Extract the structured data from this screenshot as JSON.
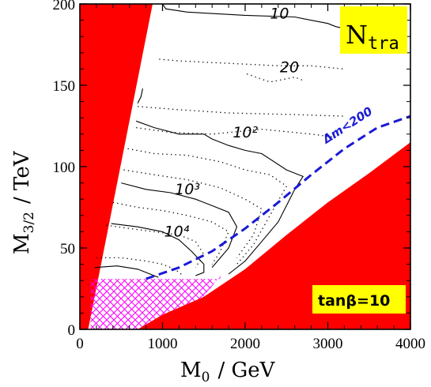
{
  "chart_data": {
    "type": "line",
    "xlabel": "M",
    "xlabel_sub": "0",
    "xlabel_unit": "/ GeV",
    "ylabel": "M",
    "ylabel_sub": "3/2",
    "ylabel_unit": "/ TeV",
    "xlim": [
      0,
      4000
    ],
    "ylim": [
      0,
      200
    ],
    "xticks": [
      0,
      1000,
      2000,
      3000,
      4000
    ],
    "yticks": [
      0,
      50,
      100,
      150,
      200
    ],
    "title_badge": {
      "main": "N",
      "sub": "tra"
    },
    "param_badge": "tanβ=10",
    "colors": {
      "excluded": "#ff0000",
      "hatch": "#ff00ff",
      "dashed": "#1a1ad6",
      "badge": "#ffff00"
    },
    "regions": [
      {
        "name": "excluded-left",
        "points": [
          [
            0,
            0
          ],
          [
            0,
            200
          ],
          [
            880,
            200
          ],
          [
            100,
            0
          ]
        ]
      },
      {
        "name": "excluded-right",
        "points": [
          [
            700,
            0
          ],
          [
            1000,
            9
          ],
          [
            1500,
            20
          ],
          [
            2000,
            37
          ],
          [
            2500,
            58
          ],
          [
            3000,
            78
          ],
          [
            3500,
            96
          ],
          [
            4000,
            115
          ],
          [
            4000,
            0
          ]
        ]
      }
    ],
    "hatched_region": {
      "points": [
        [
          130,
          0
        ],
        [
          130,
          31
        ],
        [
          1700,
          31
        ],
        [
          1700,
          33
        ],
        [
          1500,
          20
        ],
        [
          1000,
          9
        ],
        [
          700,
          0
        ]
      ]
    },
    "dashed_boundary": {
      "label": "Δm<200",
      "label_position": [
        2980,
        114
      ],
      "label_angle": -33,
      "points": [
        [
          800,
          31
        ],
        [
          1200,
          38
        ],
        [
          1600,
          48
        ],
        [
          2000,
          62
        ],
        [
          2400,
          78
        ],
        [
          2800,
          95
        ],
        [
          3200,
          111
        ],
        [
          3600,
          124
        ],
        [
          4000,
          131
        ]
      ]
    },
    "contours": [
      {
        "label": "10",
        "style": "solid",
        "label_position": [
          2300,
          191
        ],
        "points": [
          [
            1000,
            200
          ],
          [
            1040,
            197
          ],
          [
            1300,
            195
          ],
          [
            2000,
            193
          ],
          [
            2600,
            192
          ],
          [
            3000,
            188
          ],
          [
            3100,
            186
          ],
          [
            3200,
            185
          ],
          [
            3300,
            186
          ]
        ]
      },
      {
        "label": "20",
        "style": "dotted",
        "label_position": [
          2420,
          158
        ],
        "points": [
          [
            960,
            166
          ],
          [
            1200,
            165
          ],
          [
            1600,
            164
          ],
          [
            2000,
            163
          ],
          [
            2400,
            162
          ],
          [
            2800,
            162
          ],
          [
            3200,
            160
          ]
        ]
      },
      {
        "label": "",
        "style": "solid",
        "points": [
          [
            700,
            139
          ],
          [
            740,
            143
          ],
          [
            760,
            148
          ]
        ]
      },
      {
        "label": "",
        "style": "dotted",
        "points": [
          [
            700,
            137
          ],
          [
            1200,
            135
          ],
          [
            1800,
            133
          ],
          [
            2600,
            132
          ],
          [
            3200,
            131
          ]
        ]
      },
      {
        "label": "",
        "style": "dotted",
        "points": [
          [
            680,
            124
          ],
          [
            1100,
            121
          ],
          [
            1600,
            120
          ],
          [
            2200,
            123
          ],
          [
            2800,
            120
          ],
          [
            3100,
            118
          ]
        ]
      },
      {
        "label": "10²",
        "style": "solid",
        "label_position": [
          1850,
          118
        ],
        "points": [
          [
            680,
            128
          ],
          [
            900,
            124
          ],
          [
            1200,
            120
          ],
          [
            1500,
            120
          ],
          [
            1600,
            117
          ],
          [
            1800,
            113
          ],
          [
            2000,
            110
          ],
          [
            2200,
            108
          ],
          [
            2500,
            98
          ],
          [
            2700,
            94
          ],
          [
            2600,
            86
          ],
          [
            2400,
            66
          ],
          [
            2200,
            54
          ],
          [
            2000,
            42
          ],
          [
            1800,
            34
          ]
        ]
      },
      {
        "label": "",
        "style": "dotted",
        "points": [
          [
            580,
            111
          ],
          [
            900,
            108
          ],
          [
            1300,
            107
          ],
          [
            1700,
            103
          ],
          [
            2000,
            98
          ],
          [
            2300,
            95
          ],
          [
            2500,
            88
          ],
          [
            2300,
            70
          ],
          [
            2100,
            52
          ],
          [
            1900,
            40
          ]
        ]
      },
      {
        "label": "",
        "style": "dotted",
        "points": [
          [
            530,
            98
          ],
          [
            900,
            95
          ],
          [
            1300,
            92
          ],
          [
            1700,
            87
          ],
          [
            2000,
            80
          ],
          [
            2200,
            74
          ],
          [
            2100,
            58
          ],
          [
            1900,
            44
          ]
        ]
      },
      {
        "label": "10³",
        "style": "solid",
        "label_position": [
          1150,
          83
        ],
        "points": [
          [
            500,
            90
          ],
          [
            800,
            86
          ],
          [
            1100,
            84
          ],
          [
            1400,
            80
          ],
          [
            1600,
            76
          ],
          [
            1800,
            72
          ],
          [
            1900,
            63
          ],
          [
            1800,
            50
          ],
          [
            1700,
            44
          ],
          [
            1600,
            38
          ]
        ]
      },
      {
        "label": "",
        "style": "dotted",
        "points": [
          [
            400,
            78
          ],
          [
            700,
            75
          ],
          [
            1000,
            73
          ],
          [
            1300,
            70
          ],
          [
            1600,
            66
          ],
          [
            1800,
            60
          ],
          [
            1700,
            48
          ],
          [
            1600,
            40
          ]
        ]
      },
      {
        "label": "",
        "style": "dotted",
        "points": [
          [
            320,
            64
          ],
          [
            600,
            62
          ],
          [
            900,
            60
          ],
          [
            1200,
            58
          ],
          [
            1400,
            54
          ],
          [
            1500,
            46
          ],
          [
            1400,
            38
          ]
        ]
      },
      {
        "label": "10⁴",
        "style": "solid",
        "label_position": [
          1020,
          57
        ],
        "points": [
          [
            380,
            65
          ],
          [
            700,
            63
          ],
          [
            1000,
            60
          ],
          [
            1200,
            55
          ],
          [
            1350,
            48
          ],
          [
            1500,
            40
          ],
          [
            1500,
            35
          ],
          [
            1400,
            33
          ]
        ]
      },
      {
        "label": "",
        "style": "dotted",
        "points": [
          [
            200,
            44
          ],
          [
            500,
            44
          ],
          [
            800,
            42
          ],
          [
            1000,
            40
          ],
          [
            1150,
            37
          ],
          [
            1250,
            33
          ]
        ]
      },
      {
        "label": "",
        "style": "solid",
        "points": [
          [
            180,
            38
          ],
          [
            450,
            39
          ],
          [
            700,
            37
          ],
          [
            850,
            34
          ],
          [
            950,
            32
          ]
        ]
      },
      {
        "label": "",
        "style": "dotted",
        "points": [
          [
            2020,
            157
          ],
          [
            2300,
            152
          ],
          [
            2600,
            155
          ],
          [
            2700,
            153
          ]
        ]
      }
    ]
  }
}
